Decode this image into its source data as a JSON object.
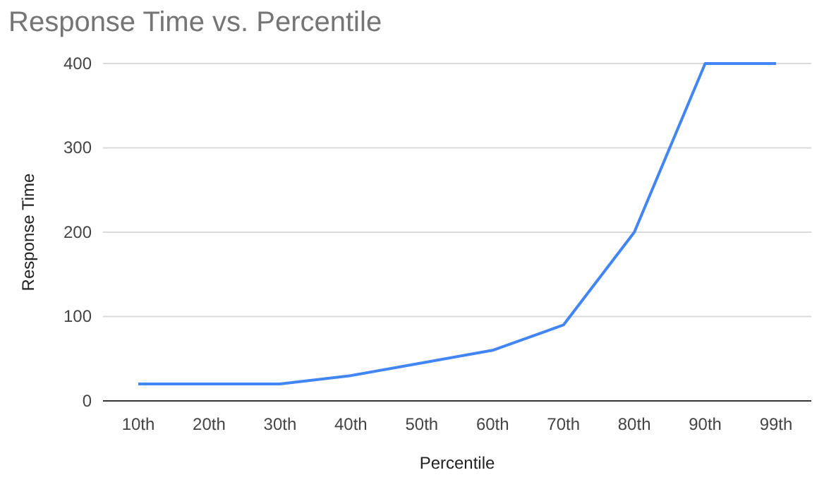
{
  "chart_data": {
    "type": "line",
    "title": "Response Time vs. Percentile",
    "xlabel": "Percentile",
    "ylabel": "Response Time",
    "categories": [
      "10th",
      "20th",
      "30th",
      "40th",
      "50th",
      "60th",
      "70th",
      "80th",
      "90th",
      "99th"
    ],
    "series": [
      {
        "color": "#4285f4",
        "values": [
          20,
          20,
          20,
          30,
          45,
          60,
          90,
          200,
          400,
          400
        ]
      }
    ],
    "ylim": [
      0,
      400
    ],
    "yticks": [
      0,
      100,
      200,
      300,
      400
    ],
    "grid": "y",
    "marker": "none",
    "line_style": "solid"
  }
}
